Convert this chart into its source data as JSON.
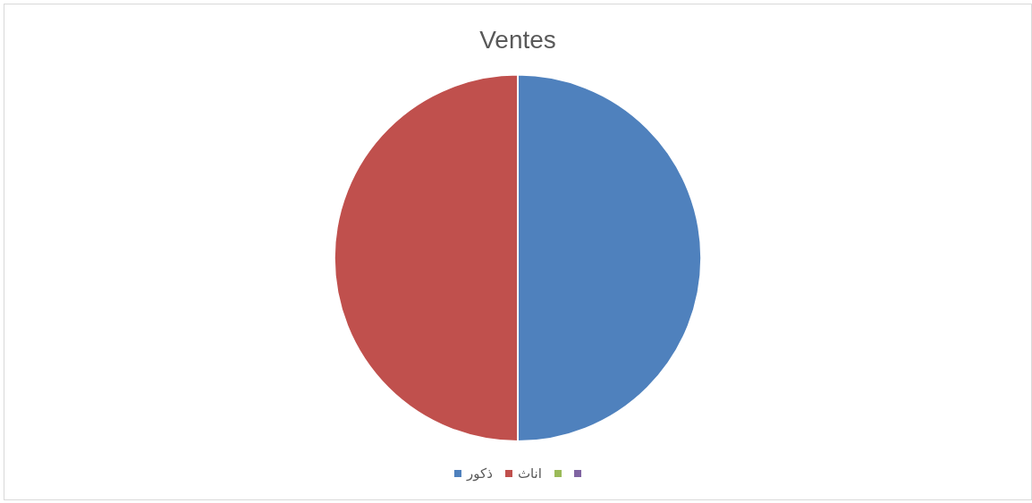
{
  "chart_data": {
    "type": "pie",
    "title": "Ventes",
    "categories": [
      "ذكور",
      "اناث",
      null,
      null
    ],
    "values": [
      50,
      50,
      0,
      0
    ],
    "colors": [
      "#4f81bd",
      "#c0504d",
      "#9bbb59",
      "#8064a2"
    ],
    "legend": "bottom"
  }
}
